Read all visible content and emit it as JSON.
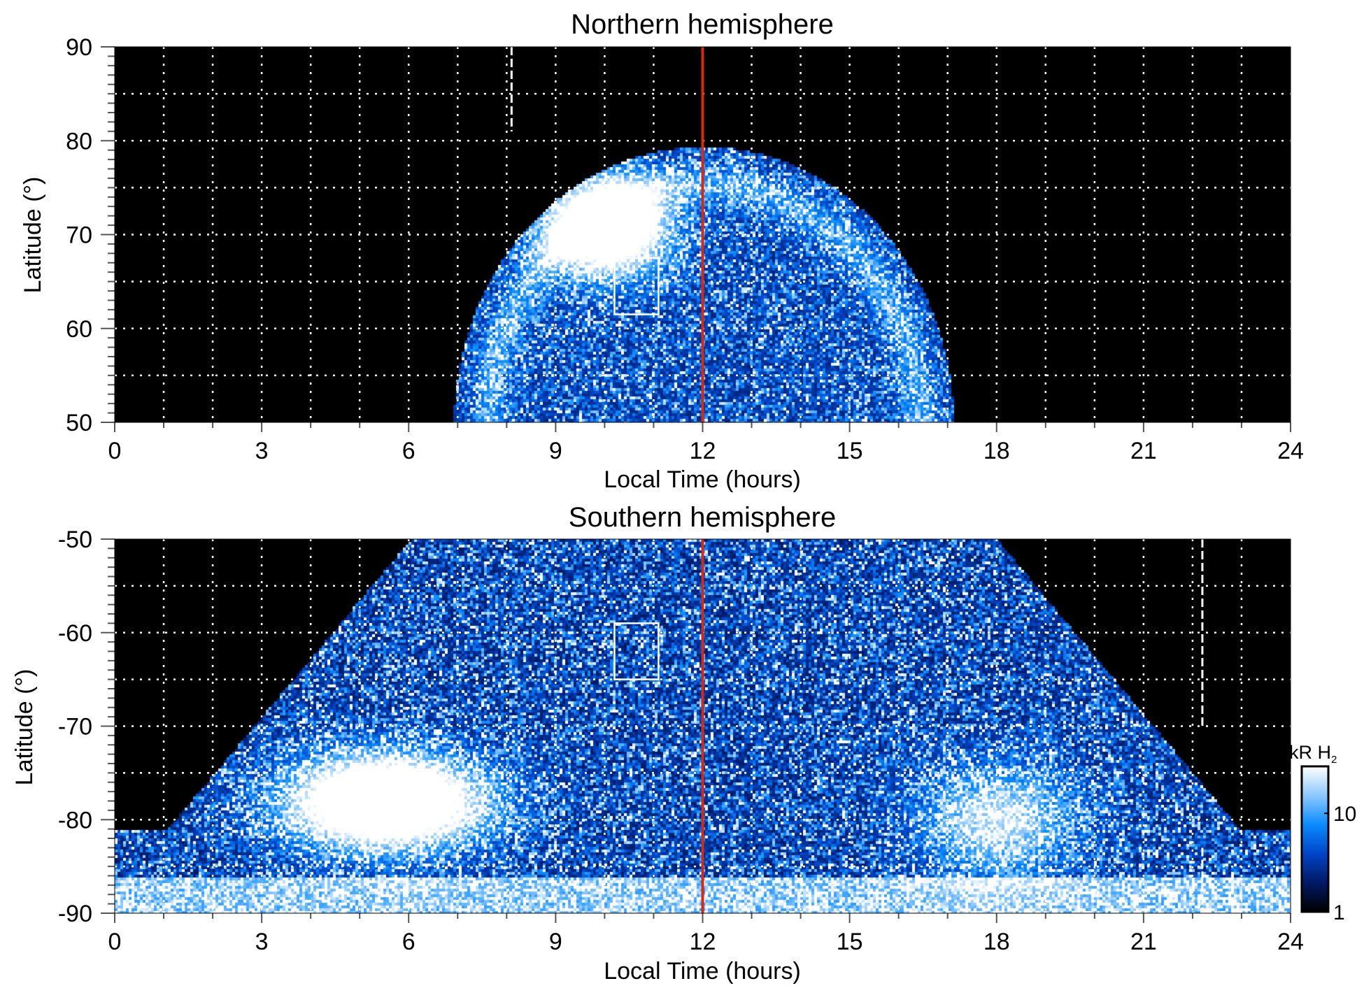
{
  "chart_data": [
    {
      "type": "heatmap",
      "title": "Northern hemisphere",
      "xlabel": "Local Time (hours)",
      "ylabel": "Latitude (°)",
      "xlim": [
        0,
        24
      ],
      "ylim": [
        50,
        90
      ],
      "xticks": [
        "0",
        "3",
        "6",
        "9",
        "12",
        "15",
        "18",
        "21",
        "24"
      ],
      "yticks": [
        "50",
        "60",
        "70",
        "80",
        "90"
      ],
      "grid": true,
      "background": "#000000",
      "red_line_lt": 12,
      "dashed_line_lt": 8.1,
      "box": {
        "lt": [
          10.2,
          11.1
        ],
        "lat": [
          61.5,
          67.5
        ]
      }
    },
    {
      "type": "heatmap",
      "title": "Southern hemisphere",
      "xlabel": "Local Time (hours)",
      "ylabel": "Latitude (°)",
      "xlim": [
        0,
        24
      ],
      "ylim": [
        -90,
        -50
      ],
      "xticks": [
        "0",
        "3",
        "6",
        "9",
        "12",
        "15",
        "18",
        "21",
        "24"
      ],
      "yticks": [
        "-90",
        "-80",
        "-70",
        "-60",
        "-50"
      ],
      "grid": true,
      "background": "#000000",
      "red_line_lt": 12,
      "dashed_line_lt": 22.2,
      "box": {
        "lt": [
          10.2,
          11.1
        ],
        "lat": [
          -65,
          -59
        ]
      }
    }
  ],
  "colorbar": {
    "label": "kR H",
    "label_sub": "2",
    "scale": "log",
    "range": [
      1,
      30
    ],
    "ticks": [
      "1",
      "10"
    ],
    "colors": [
      "#000000",
      "#001a66",
      "#0046c8",
      "#0a8cff",
      "#8cc8ff",
      "#ffffff"
    ]
  },
  "colors": {
    "red_line": "#d42a10",
    "grid": "#ffffff"
  }
}
